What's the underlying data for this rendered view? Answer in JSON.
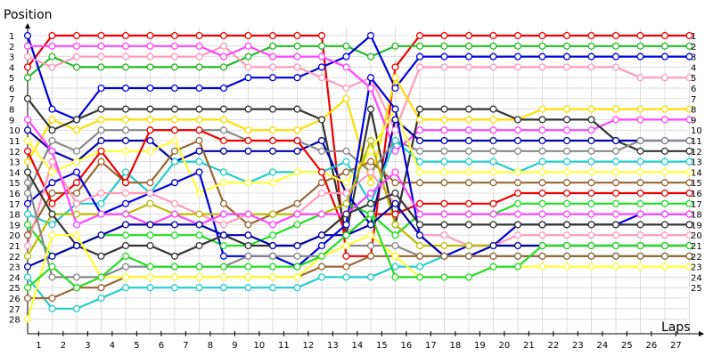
{
  "chart_data": {
    "type": "line",
    "xlabel": "Laps",
    "ylabel": "Position",
    "x": [
      0,
      1,
      2,
      3,
      4,
      5,
      6,
      7,
      8,
      9,
      10,
      11,
      12,
      13,
      14,
      15,
      16,
      17,
      18,
      19,
      20,
      21,
      22,
      23,
      24,
      25,
      26,
      27
    ],
    "x_tick_labels": [
      "1",
      "2",
      "3",
      "4",
      "5",
      "6",
      "7",
      "8",
      "9",
      "10",
      "11",
      "12",
      "13",
      "14",
      "15",
      "16",
      "17",
      "18",
      "19",
      "20",
      "21",
      "22",
      "23",
      "24",
      "25",
      "26",
      "27"
    ],
    "y_tick_labels": [
      "1",
      "2",
      "3",
      "4",
      "5",
      "6",
      "7",
      "8",
      "9",
      "10",
      "11",
      "12",
      "13",
      "14",
      "15",
      "16",
      "17",
      "18",
      "19",
      "20",
      "21",
      "22",
      "23",
      "24",
      "25",
      "26",
      "27",
      "28"
    ],
    "right_tick_labels": [
      "1",
      "2",
      "3",
      "4",
      "5",
      "6",
      "7",
      "8",
      "9",
      "10",
      "11",
      "12",
      "13",
      "14",
      "15",
      "16",
      "17",
      "18",
      "19",
      "20",
      "21",
      "22",
      "23",
      "24",
      "25"
    ],
    "xlim": [
      0,
      27.5
    ],
    "ylim": [
      1,
      28
    ],
    "y_inverted": true,
    "grid": true,
    "series": [
      {
        "color": "#ee0000",
        "values": [
          4,
          1,
          1,
          1,
          1,
          1,
          1,
          1,
          1,
          1,
          1,
          1,
          1,
          22,
          22,
          4,
          1,
          1,
          1,
          1,
          1,
          1,
          1,
          1,
          1,
          1,
          1,
          1
        ]
      },
      {
        "color": "#22bb22",
        "values": [
          5,
          3,
          4,
          4,
          4,
          4,
          4,
          4,
          4,
          3,
          2,
          2,
          2,
          2,
          3,
          2,
          2,
          2,
          2,
          2,
          2,
          2,
          2,
          2,
          2,
          2,
          2,
          2
        ]
      },
      {
        "color": "#0000dd",
        "values": [
          1,
          8,
          9,
          6,
          6,
          6,
          6,
          6,
          6,
          5,
          5,
          5,
          4,
          3,
          1,
          6,
          3,
          3,
          3,
          3,
          3,
          3,
          3,
          3,
          3,
          3,
          3,
          3
        ]
      },
      {
        "color": "#ff99bb",
        "values": [
          3,
          4,
          3,
          3,
          3,
          3,
          3,
          3,
          2,
          4,
          4,
          4,
          5,
          6,
          5,
          10,
          4,
          4,
          4,
          4,
          4,
          4,
          4,
          4,
          4,
          5,
          5,
          5
        ]
      },
      {
        "color": "#ffdd00",
        "values": [
          13,
          9,
          10,
          9,
          9,
          9,
          9,
          9,
          9,
          10,
          10,
          10,
          9,
          7,
          15,
          5,
          9,
          9,
          9,
          9,
          9,
          8,
          8,
          8,
          8,
          8,
          8,
          8
        ]
      },
      {
        "color": "#ff44ff",
        "values": [
          2,
          2,
          2,
          2,
          2,
          2,
          2,
          2,
          3,
          2,
          3,
          3,
          3,
          4,
          6,
          12,
          10,
          10,
          10,
          10,
          10,
          10,
          10,
          10,
          9,
          9,
          9,
          9
        ]
      },
      {
        "color": "#333333",
        "values": [
          7,
          10,
          9,
          8,
          8,
          8,
          8,
          8,
          8,
          8,
          8,
          8,
          9,
          20,
          8,
          19,
          8,
          8,
          8,
          8,
          9,
          9,
          9,
          9,
          11,
          12,
          12,
          12
        ]
      },
      {
        "color": "#0000aa",
        "values": [
          10,
          12,
          13,
          11,
          11,
          11,
          13,
          12,
          12,
          12,
          12,
          12,
          11,
          16,
          19,
          9,
          11,
          11,
          11,
          11,
          11,
          11,
          11,
          11,
          11,
          11,
          11,
          11
        ]
      },
      {
        "color": "#888888",
        "values": [
          16,
          11,
          12,
          10,
          10,
          10,
          10,
          10,
          10,
          11,
          11,
          11,
          12,
          12,
          14,
          11,
          12,
          12,
          12,
          12,
          12,
          12,
          12,
          12,
          12,
          11,
          11,
          11
        ]
      },
      {
        "color": "#22cccc",
        "values": [
          18,
          19,
          17,
          17,
          14,
          16,
          13,
          13,
          14,
          15,
          14,
          14,
          14,
          13,
          17,
          11,
          13,
          13,
          13,
          13,
          14,
          13,
          13,
          13,
          13,
          13,
          13,
          13
        ]
      },
      {
        "color": "#996633",
        "values": [
          20,
          16,
          16,
          13,
          15,
          15,
          12,
          11,
          17,
          19,
          18,
          17,
          15,
          14,
          13,
          15,
          15,
          15,
          15,
          15,
          15,
          15,
          15,
          15,
          15,
          15,
          15,
          15
        ]
      },
      {
        "color": "#ffff33",
        "values": [
          11,
          14,
          13,
          12,
          12,
          12,
          11,
          16,
          15,
          15,
          15,
          14,
          14,
          15,
          12,
          8,
          14,
          14,
          14,
          14,
          14,
          14,
          14,
          14,
          14,
          14,
          14,
          14
        ]
      },
      {
        "color": "#ee0000",
        "values": [
          12,
          17,
          15,
          12,
          15,
          10,
          10,
          10,
          11,
          11,
          11,
          11,
          14,
          20,
          18,
          18,
          17,
          17,
          17,
          17,
          16,
          16,
          16,
          16,
          16,
          16,
          16,
          16
        ]
      },
      {
        "color": "#22dd22",
        "values": [
          19,
          22,
          21,
          20,
          20,
          20,
          20,
          20,
          21,
          21,
          20,
          19,
          18,
          17,
          18,
          20,
          18,
          18,
          18,
          18,
          17,
          17,
          17,
          17,
          17,
          17,
          17,
          17
        ]
      },
      {
        "color": "#0000dd",
        "values": [
          17,
          15,
          14,
          18,
          17,
          16,
          15,
          14,
          22,
          22,
          22,
          23,
          21,
          19,
          5,
          8,
          20,
          22,
          21,
          21,
          19,
          19,
          19,
          19,
          19,
          18,
          18,
          18
        ]
      },
      {
        "color": "#ff99bb",
        "values": [
          21,
          13,
          17,
          16,
          16,
          16,
          17,
          18,
          19,
          18,
          18,
          18,
          16,
          16,
          14,
          17,
          20,
          20,
          21,
          21,
          20,
          20,
          20,
          20,
          20,
          20,
          20,
          20
        ]
      },
      {
        "color": "#bbbb00",
        "values": [
          22,
          18,
          18,
          18,
          18,
          17,
          18,
          18,
          18,
          18,
          18,
          18,
          18,
          17,
          11,
          19,
          21,
          21,
          21,
          21,
          21,
          21,
          21,
          21,
          21,
          21,
          21,
          21
        ]
      },
      {
        "color": "#ff44ff",
        "values": [
          9,
          12,
          19,
          18,
          18,
          19,
          18,
          19,
          18,
          18,
          19,
          18,
          18,
          18,
          16,
          14,
          18,
          18,
          18,
          18,
          18,
          18,
          18,
          18,
          18,
          18,
          18,
          18
        ]
      },
      {
        "color": "#333333",
        "values": [
          14,
          18,
          21,
          22,
          21,
          21,
          22,
          21,
          20,
          21,
          21,
          21,
          20,
          18,
          17,
          16,
          19,
          19,
          19,
          19,
          19,
          19,
          19,
          19,
          19,
          19,
          19,
          19
        ]
      },
      {
        "color": "#0000aa",
        "values": [
          23,
          22,
          21,
          20,
          19,
          19,
          19,
          19,
          20,
          20,
          21,
          21,
          20,
          20,
          19,
          17,
          20,
          22,
          22,
          21,
          21,
          21,
          21,
          21,
          21,
          21,
          21,
          21
        ]
      },
      {
        "color": "#888888",
        "values": [
          15,
          24,
          24,
          24,
          23,
          23,
          23,
          23,
          23,
          22,
          22,
          22,
          22,
          21,
          21,
          21,
          22,
          22,
          22,
          22,
          22,
          22,
          22,
          22,
          22,
          22,
          22,
          22
        ]
      },
      {
        "color": "#22cccc",
        "values": [
          24,
          27,
          27,
          26,
          25,
          25,
          25,
          25,
          25,
          25,
          25,
          25,
          24,
          24,
          24,
          23,
          23,
          22,
          22,
          22,
          22,
          22,
          22,
          22,
          22,
          22,
          22,
          22
        ]
      },
      {
        "color": "#996633",
        "values": [
          26,
          26,
          25,
          25,
          24,
          24,
          24,
          24,
          24,
          24,
          24,
          24,
          23,
          23,
          22,
          22,
          22,
          22,
          22,
          22,
          22,
          22,
          22,
          22,
          22,
          22,
          22,
          22
        ]
      },
      {
        "color": "#ffff33",
        "values": [
          28,
          20,
          20,
          24,
          24,
          24,
          24,
          24,
          24,
          24,
          24,
          24,
          22,
          21,
          20,
          22,
          24,
          24,
          24,
          23,
          23,
          23,
          23,
          23,
          23,
          23,
          23,
          23
        ]
      },
      {
        "color": "#22dd22",
        "values": [
          25,
          23,
          25,
          24,
          22,
          23,
          23,
          23,
          23,
          23,
          23,
          23,
          22,
          20,
          18,
          24,
          24,
          24,
          24,
          23,
          23,
          21,
          21,
          21,
          21,
          21,
          21,
          21
        ]
      }
    ]
  }
}
